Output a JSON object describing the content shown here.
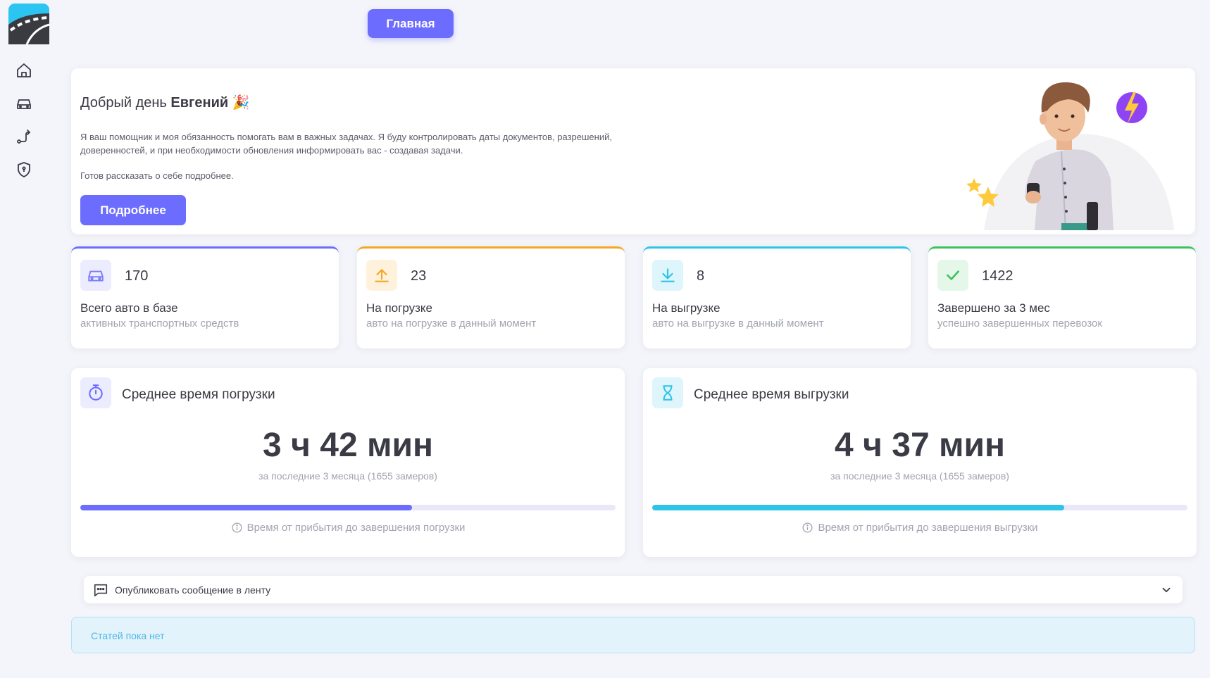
{
  "header": {
    "home_button_label": "Главная"
  },
  "sidebar": {
    "items": [
      {
        "icon": "home-icon"
      },
      {
        "icon": "car-icon"
      },
      {
        "icon": "route-icon"
      },
      {
        "icon": "shield-lock-icon"
      }
    ]
  },
  "welcome": {
    "greeting": "Добрый день",
    "name": "Евгений",
    "emoji": "🎉",
    "text": "Я ваш помощник и моя обязанность помогать вам в важных задачах. Я буду контролировать даты документов, разрешений, доверенностей, и при необходимости обновления информировать вас - создавая задачи.",
    "text2": "Готов рассказать о себе подробнее.",
    "more_label": "Подробнее"
  },
  "stats": [
    {
      "value": "170",
      "title": "Всего авто в базе",
      "subtitle": "активных транспортных средств",
      "icon": "car-icon",
      "color": "#6c6cff"
    },
    {
      "value": "23",
      "title": "На погрузке",
      "subtitle": "авто на погрузке в данный момент",
      "icon": "upload-icon",
      "color": "#f5a623"
    },
    {
      "value": "8",
      "title": "На выгрузке",
      "subtitle": "авто на выгрузке в данный момент",
      "icon": "download-icon",
      "color": "#2ec4e8"
    },
    {
      "value": "1422",
      "title": "Завершено за 3 мес",
      "subtitle": "успешно завершенных перевозок",
      "icon": "check-icon",
      "color": "#3cc25a"
    }
  ],
  "avg_loading": {
    "title": "Среднее время погрузки",
    "value": "3 ч 42 мин",
    "note": "за последние 3 месяца (1655 замеров)",
    "progress": 0.62,
    "hint": "Время от прибытия до завершения погрузки",
    "icon": "stopwatch-icon",
    "color": "#6c6cff"
  },
  "avg_unloading": {
    "title": "Среднее время выгрузки",
    "value": "4 ч 37 мин",
    "note": "за последние 3 месяца (1655 замеров)",
    "progress": 0.77,
    "hint": "Время от прибытия до завершения выгрузки",
    "icon": "hourglass-icon",
    "color": "#2ec4e8"
  },
  "publish": {
    "label": "Опубликовать сообщение в ленту"
  },
  "feed": {
    "empty_text": "Статей пока нет"
  }
}
